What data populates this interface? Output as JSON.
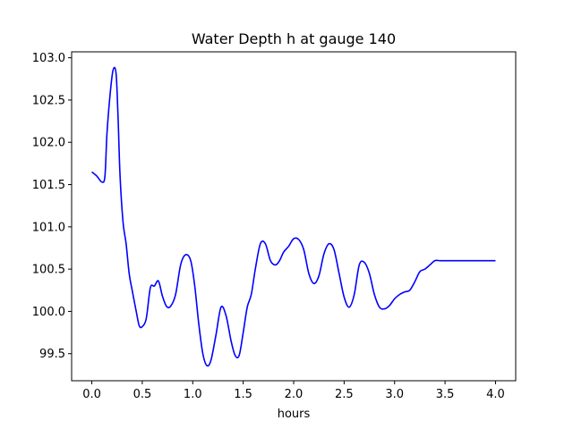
{
  "chart_data": {
    "type": "line",
    "title": "Water Depth h at gauge 140",
    "xlabel": "hours",
    "ylabel": "",
    "xlim": [
      -0.2,
      4.2
    ],
    "ylim": [
      99.18,
      103.07
    ],
    "xticks": [
      0.0,
      0.5,
      1.0,
      1.5,
      2.0,
      2.5,
      3.0,
      3.5,
      4.0
    ],
    "xtick_labels": [
      "0.0",
      "0.5",
      "1.0",
      "1.5",
      "2.0",
      "2.5",
      "3.0",
      "3.5",
      "4.0"
    ],
    "yticks": [
      99.5,
      100.0,
      100.5,
      101.0,
      101.5,
      102.0,
      102.5,
      103.0
    ],
    "ytick_labels": [
      "99.5",
      "100.0",
      "100.5",
      "101.0",
      "101.5",
      "102.0",
      "102.5",
      "103.0"
    ],
    "grid": false,
    "colors": {
      "line": "#0000ff",
      "axes": "#000000",
      "background": "#ffffff"
    },
    "series": [
      {
        "x": [
          0.0,
          0.05,
          0.1,
          0.13,
          0.15,
          0.18,
          0.21,
          0.24,
          0.26,
          0.28,
          0.31,
          0.34,
          0.37,
          0.4,
          0.44,
          0.47,
          0.5,
          0.54,
          0.58,
          0.62,
          0.66,
          0.7,
          0.74,
          0.78,
          0.83,
          0.88,
          0.93,
          0.98,
          1.02,
          1.06,
          1.1,
          1.14,
          1.18,
          1.23,
          1.28,
          1.33,
          1.38,
          1.42,
          1.46,
          1.5,
          1.54,
          1.58,
          1.62,
          1.67,
          1.72,
          1.77,
          1.82,
          1.86,
          1.9,
          1.95,
          2.0,
          2.05,
          2.1,
          2.15,
          2.2,
          2.25,
          2.3,
          2.35,
          2.4,
          2.45,
          2.5,
          2.55,
          2.6,
          2.65,
          2.7,
          2.75,
          2.8,
          2.85,
          2.9,
          2.95,
          3.0,
          3.05,
          3.1,
          3.15,
          3.2,
          3.25,
          3.3,
          3.35,
          3.4,
          3.45,
          3.5,
          3.55,
          3.6,
          3.65,
          3.7,
          3.75,
          3.8,
          3.85,
          3.9,
          3.95,
          4.0
        ],
        "values": [
          101.65,
          101.6,
          101.53,
          101.6,
          102.1,
          102.55,
          102.85,
          102.82,
          102.3,
          101.6,
          101.05,
          100.8,
          100.45,
          100.25,
          100.0,
          99.83,
          99.82,
          99.92,
          100.28,
          100.3,
          100.36,
          100.18,
          100.06,
          100.06,
          100.2,
          100.55,
          100.67,
          100.6,
          100.3,
          99.85,
          99.5,
          99.36,
          99.42,
          99.72,
          100.05,
          99.95,
          99.65,
          99.48,
          99.48,
          99.75,
          100.05,
          100.2,
          100.5,
          100.8,
          100.8,
          100.6,
          100.55,
          100.6,
          100.7,
          100.77,
          100.86,
          100.85,
          100.73,
          100.45,
          100.33,
          100.42,
          100.68,
          100.8,
          100.73,
          100.45,
          100.17,
          100.05,
          100.2,
          100.55,
          100.58,
          100.45,
          100.2,
          100.05,
          100.03,
          100.07,
          100.15,
          100.2,
          100.23,
          100.25,
          100.35,
          100.47,
          100.5,
          100.55,
          100.6,
          100.6,
          100.6,
          100.6,
          100.6,
          100.6,
          100.6,
          100.6,
          100.6,
          100.6,
          100.6,
          100.6,
          100.6
        ]
      }
    ]
  }
}
